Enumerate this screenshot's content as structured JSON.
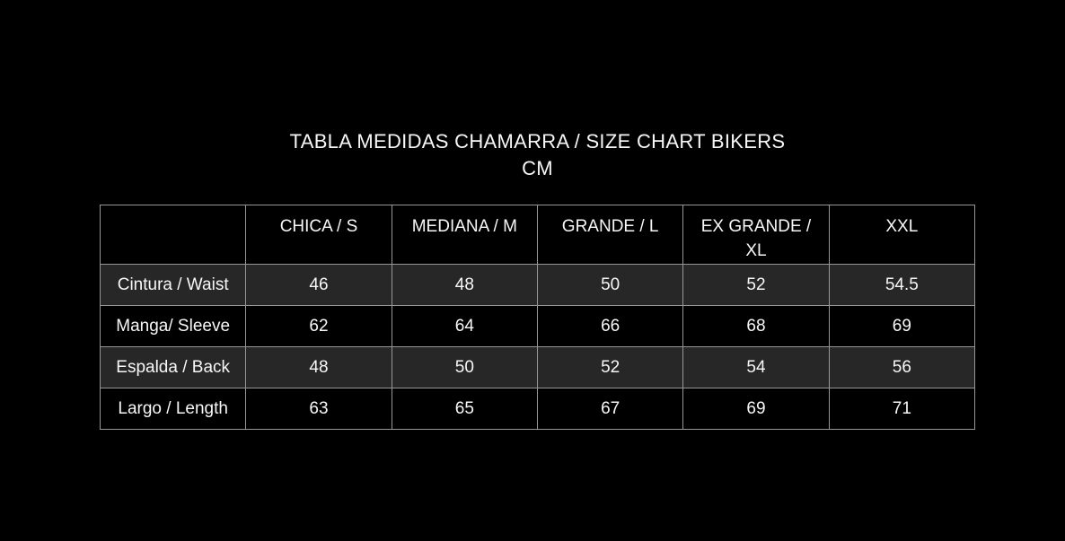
{
  "title": {
    "line1": "TABLA MEDIDAS CHAMARRA / SIZE CHART BIKERS",
    "line2": "CM"
  },
  "chart_data": {
    "type": "table",
    "title": "TABLA MEDIDAS CHAMARRA / SIZE CHART BIKERS CM",
    "unit": "CM",
    "columns": [
      "",
      "CHICA / S",
      "MEDIANA / M",
      "GRANDE / L",
      "EX GRANDE / XL",
      "XXL"
    ],
    "rows": [
      {
        "label": "Cintura / Waist",
        "values": [
          "46",
          "48",
          "50",
          "52",
          "54.5"
        ]
      },
      {
        "label": "Manga/ Sleeve",
        "values": [
          "62",
          "64",
          "66",
          "68",
          "69"
        ]
      },
      {
        "label": "Espalda / Back",
        "values": [
          "48",
          "50",
          "52",
          "54",
          "56"
        ]
      },
      {
        "label": "Largo / Length",
        "values": [
          "63",
          "65",
          "67",
          "69",
          "71"
        ]
      }
    ]
  },
  "colors": {
    "background": "#000000",
    "text": "#f7f7f7",
    "border": "#979797",
    "row_stripe": "#272727",
    "row_dark": "#000000"
  }
}
